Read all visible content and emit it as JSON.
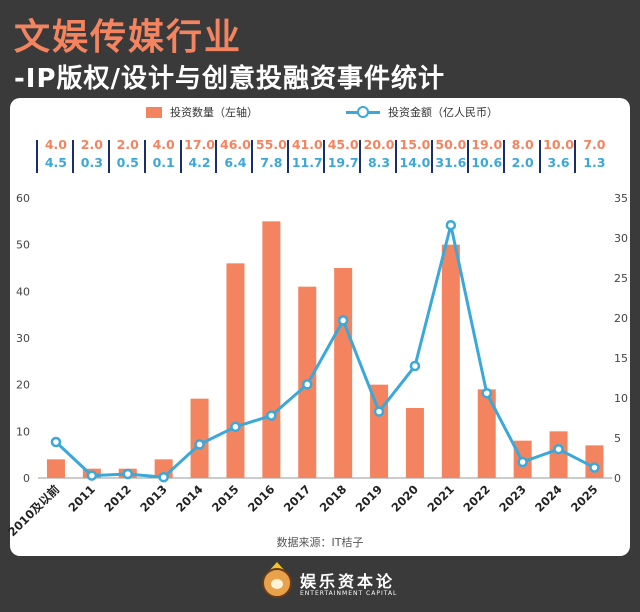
{
  "header": {
    "title": "文娱传媒行业",
    "subtitle": "-IP版权/设计与创意投融资事件统计"
  },
  "legend": {
    "bar_label": "投资数量（左轴）",
    "line_label": "投资金额（亿人民币）"
  },
  "source": "数据来源：IT桔子",
  "brand": {
    "name_cn": "娱乐资本论",
    "name_en": "ENTERTAINMENT CAPITAL"
  },
  "colors": {
    "bar": "#f4845f",
    "line": "#3aa8d8",
    "separator": "#1a2e6e",
    "background": "#3a3a3a"
  },
  "chart_data": {
    "type": "bar+line",
    "categories": [
      "2010及以前",
      "2011",
      "2012",
      "2013",
      "2014",
      "2015",
      "2016",
      "2017",
      "2018",
      "2019",
      "2020",
      "2021",
      "2022",
      "2023",
      "2024",
      "2025"
    ],
    "series": [
      {
        "name": "投资数量（左轴）",
        "type": "bar",
        "axis": "left",
        "values": [
          4,
          2,
          2,
          4,
          17,
          46,
          55,
          41,
          45,
          20,
          15,
          50,
          19,
          8,
          10,
          7
        ],
        "labels": [
          "4.0",
          "2.0",
          "2.0",
          "4.0",
          "17.0",
          "46.0",
          "55.0",
          "41.0",
          "45.0",
          "20.0",
          "15.0",
          "50.0",
          "19.0",
          "8.0",
          "10.0",
          "7.0"
        ]
      },
      {
        "name": "投资金额（亿人民币）",
        "type": "line",
        "axis": "right",
        "values": [
          4.5,
          0.3,
          0.5,
          0.1,
          4.2,
          6.4,
          7.8,
          11.7,
          19.7,
          8.3,
          14.0,
          31.6,
          10.6,
          2.0,
          3.6,
          1.3
        ],
        "labels": [
          "4.5",
          "0.3",
          "0.5",
          "0.1",
          "4.2",
          "6.4",
          "7.8",
          "11.7",
          "19.7",
          "8.3",
          "14.0",
          "31.6",
          "10.6",
          "2.0",
          "3.6",
          "1.3"
        ]
      }
    ],
    "y_left": {
      "min": 0,
      "max": 60,
      "ticks": [
        "0",
        "10",
        "20",
        "30",
        "40",
        "50",
        "60"
      ]
    },
    "y_right": {
      "min": 0,
      "max": 35,
      "ticks": [
        "0",
        "5",
        "10",
        "15",
        "20",
        "25",
        "30",
        "35"
      ]
    },
    "grid": false,
    "legend_position": "top"
  }
}
